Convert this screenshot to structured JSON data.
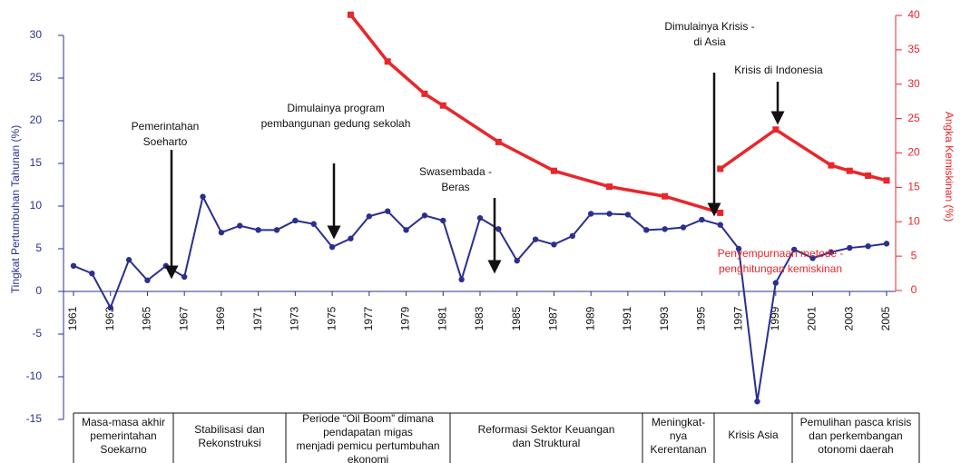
{
  "chart_data": {
    "type": "line",
    "ylabel": "Tingkat Pertumbuhan Tahunan (%)",
    "y2label": "Angka Kemiskinan (%)",
    "xlim": [
      1960.5,
      2005.4
    ],
    "xticks": [
      1961,
      1963,
      1965,
      1967,
      1969,
      1971,
      1973,
      1975,
      1977,
      1979,
      1981,
      1983,
      1985,
      1987,
      1989,
      1991,
      1993,
      1995,
      1997,
      1999,
      2001,
      2003,
      2005
    ],
    "ylim": [
      -15,
      30
    ],
    "yticks": [
      -15,
      -10,
      -5,
      0,
      5,
      10,
      15,
      20,
      25,
      30
    ],
    "y2lim": [
      0,
      40
    ],
    "y2ticks": [
      0,
      5,
      10,
      15,
      20,
      25,
      30,
      35,
      40
    ],
    "series": [
      {
        "name": "Tingkat Pertumbuhan Tahunan",
        "color": "#2b2f8f",
        "x": [
          1961,
          1962,
          1963,
          1964,
          1965,
          1966,
          1967,
          1968,
          1969,
          1970,
          1971,
          1972,
          1973,
          1974,
          1975,
          1976,
          1977,
          1978,
          1979,
          1980,
          1981,
          1982,
          1983,
          1984,
          1985,
          1986,
          1987,
          1988,
          1989,
          1990,
          1991,
          1992,
          1993,
          1994,
          1995,
          1996,
          1997,
          1998,
          1999,
          2000,
          2001,
          2002,
          2003,
          2004,
          2005
        ],
        "values": [
          3.0,
          2.1,
          -1.9,
          3.7,
          1.3,
          3.0,
          1.7,
          11.1,
          6.9,
          7.7,
          7.2,
          7.2,
          8.3,
          7.9,
          5.2,
          6.2,
          8.8,
          9.4,
          7.2,
          8.9,
          8.3,
          1.4,
          8.6,
          7.3,
          3.6,
          6.1,
          5.5,
          6.5,
          9.1,
          9.1,
          9.0,
          7.2,
          7.3,
          7.5,
          8.4,
          7.8,
          5.0,
          -12.9,
          1.0,
          4.9,
          3.9,
          4.6,
          5.1,
          5.3,
          5.6
        ]
      },
      {
        "name": "Angka Kemiskinan",
        "color": "#e8262b",
        "axis": "y2",
        "x": [
          1976,
          1978,
          1980,
          1981,
          1984,
          1987,
          1990,
          1993,
          1996,
          null,
          1996,
          1999,
          2002,
          2003,
          2004,
          2005
        ],
        "values": [
          40.1,
          33.3,
          28.6,
          26.9,
          21.6,
          17.4,
          15.1,
          13.7,
          11.3,
          null,
          17.7,
          23.4,
          18.2,
          17.4,
          16.7,
          16.0
        ]
      }
    ],
    "annotations": [
      {
        "lines": [
          "Pemerintahan",
          "Soeharto"
        ]
      },
      {
        "lines": [
          "Dimulainya program",
          "pembangunan gedung sekolah"
        ]
      },
      {
        "lines": [
          "Swasembada -",
          "Beras"
        ]
      },
      {
        "lines": [
          "Dimulainya Krisis -",
          "di Asia"
        ]
      },
      {
        "lines": [
          "Krisis di Indonesia"
        ]
      },
      {
        "lines": [
          "Penyempurnaan metode -",
          "penghitungan kemiskinan"
        ]
      }
    ],
    "periods": [
      {
        "lines": [
          "Masa-masa akhir",
          "pemerintahan",
          "Soekarno"
        ]
      },
      {
        "lines": [
          "Stabilisasi dan",
          "Rekonstruksi"
        ]
      },
      {
        "lines": [
          "Periode “Oil Boom” dimana",
          "pendapatan migas",
          "menjadi pemicu pertumbuhan",
          "ekonomi"
        ]
      },
      {
        "lines": [
          "Reformasi Sektor Keuangan",
          "dan Struktural"
        ]
      },
      {
        "lines": [
          "Meningkat-",
          "nya",
          "Kerentanan"
        ]
      },
      {
        "lines": [
          "Krisis Asia"
        ]
      },
      {
        "lines": [
          "Pemulihan pasca krisis",
          "dan perkembangan",
          "otonomi daerah"
        ]
      }
    ]
  }
}
